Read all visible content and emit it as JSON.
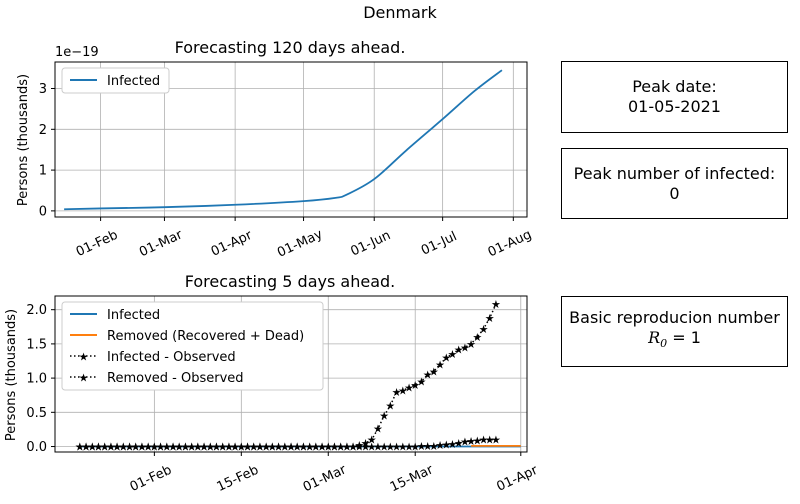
{
  "figure_title": "Denmark",
  "chart_data": [
    {
      "type": "line",
      "title": "Forecasting 120 days ahead.",
      "ylabel": "Persons (thousands)",
      "xlabel": "",
      "scale_label": "1e−19",
      "x_tick_labels": [
        "01-Feb",
        "01-Mar",
        "01-Apr",
        "01-May",
        "01-Jun",
        "01-Jul",
        "01-Aug"
      ],
      "y_ticks": [
        0,
        1,
        2,
        3
      ],
      "ylim": [
        -0.15,
        3.65
      ],
      "grid": true,
      "legend": "top-left",
      "series": [
        {
          "name": "Infected",
          "color": "#1f77b4",
          "x": [
            "2021-01-16",
            "2021-02-01",
            "2021-03-01",
            "2021-04-01",
            "2021-05-01",
            "2021-05-15",
            "2021-05-20",
            "2021-06-01",
            "2021-06-15",
            "2021-07-01",
            "2021-07-15",
            "2021-07-27"
          ],
          "y": [
            0.04,
            0.06,
            0.09,
            0.15,
            0.24,
            0.32,
            0.4,
            0.78,
            1.48,
            2.25,
            2.94,
            3.45
          ]
        }
      ]
    },
    {
      "type": "line",
      "title": "Forecasting 5 days ahead.",
      "ylabel": "Persons (thousands)",
      "xlabel": "",
      "x_tick_labels": [
        "01-Feb",
        "15-Feb",
        "01-Mar",
        "15-Mar",
        "01-Apr"
      ],
      "y_ticks": [
        "0.0",
        "0.5",
        "1.0",
        "1.5",
        "2.0"
      ],
      "ylim": [
        -0.08,
        2.2
      ],
      "grid": true,
      "legend": "top-left",
      "series": [
        {
          "name": "Infected",
          "color": "#1f77b4",
          "x": [
            "2021-01-20",
            "2021-04-01"
          ],
          "y": [
            0.0,
            0.0
          ]
        },
        {
          "name": "Removed (Recovered + Dead)",
          "color": "#ff7f0e",
          "x": [
            "2021-03-24",
            "2021-04-01"
          ],
          "y": [
            0.01,
            0.01
          ]
        },
        {
          "name": "Infected - Observed",
          "color": "#000000",
          "style": "dotted-star",
          "start_date": "2021-01-20",
          "y": [
            0,
            0,
            0,
            0,
            0,
            0,
            0,
            0,
            0,
            0,
            0,
            0,
            0,
            0,
            0,
            0,
            0,
            0,
            0,
            0,
            0,
            0,
            0,
            0,
            0,
            0,
            0,
            0,
            0,
            0,
            0,
            0,
            0,
            0,
            0,
            0,
            0,
            0,
            0,
            0,
            0,
            0,
            0,
            0,
            0,
            0.02,
            0.05,
            0.1,
            0.26,
            0.45,
            0.6,
            0.8,
            0.82,
            0.86,
            0.9,
            0.95,
            1.05,
            1.1,
            1.2,
            1.3,
            1.35,
            1.42,
            1.45,
            1.5,
            1.6,
            1.72,
            1.88,
            2.08
          ]
        },
        {
          "name": "Removed - Observed",
          "color": "#000000",
          "style": "dotted-star",
          "start_date": "2021-01-20",
          "y": [
            0,
            0,
            0,
            0,
            0,
            0,
            0,
            0,
            0,
            0,
            0,
            0,
            0,
            0,
            0,
            0,
            0,
            0,
            0,
            0,
            0,
            0,
            0,
            0,
            0,
            0,
            0,
            0,
            0,
            0,
            0,
            0,
            0,
            0,
            0,
            0,
            0,
            0,
            0,
            0,
            0,
            0,
            0,
            0,
            0,
            0,
            0,
            0,
            0,
            0,
            0,
            0,
            0,
            0,
            0,
            0.01,
            0.01,
            0.01,
            0.02,
            0.03,
            0.04,
            0.05,
            0.07,
            0.08,
            0.09,
            0.1,
            0.1,
            0.1
          ]
        }
      ]
    }
  ],
  "info_boxes": {
    "peak_date_label": "Peak date:",
    "peak_date_value": "01-05-2021",
    "peak_infected_label": "Peak number of infected:",
    "peak_infected_value": "0",
    "r0_label": "Basic reproducion number",
    "r0_symbol": "R",
    "r0_subscript": "0",
    "r0_equals": "= 1"
  }
}
